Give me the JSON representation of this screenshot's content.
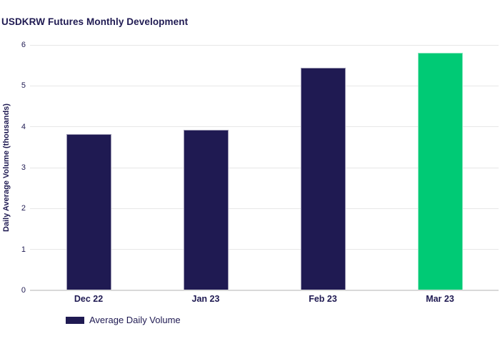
{
  "colors": {
    "navy": "#1f1a52",
    "green": "#00ca75",
    "gridline": "#e7e7e7",
    "baseline": "#d9d9d9",
    "text": "#1f1a52",
    "background": "#ffffff"
  },
  "legend": {
    "label": "Average Daily Volume",
    "swatch_color": "#1f1a52"
  },
  "chart_data": {
    "type": "bar",
    "title": "USDKRW Futures Monthly Development",
    "categories": [
      "Dec 22",
      "Jan 23",
      "Feb 23",
      "Mar 23"
    ],
    "values": [
      3.82,
      3.92,
      5.45,
      5.8
    ],
    "bar_colors": [
      "#1f1a52",
      "#1f1a52",
      "#1f1a52",
      "#00ca75"
    ],
    "xlabel": "",
    "ylabel": "Daily Average Volume (thousands)",
    "ylim": [
      0,
      6
    ],
    "yticks": [
      0,
      1,
      2,
      3,
      4,
      5,
      6
    ],
    "grid": true,
    "legend_position": "bottom-left",
    "legend_entries": [
      "Average Daily Volume"
    ]
  }
}
